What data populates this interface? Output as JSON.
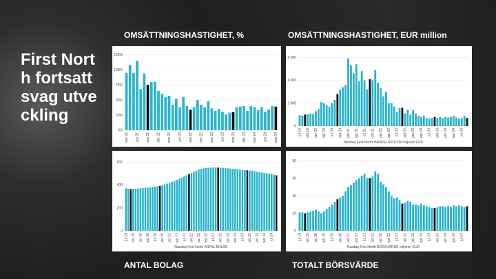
{
  "slide": {
    "title": "First North fortsatt svag utveckling"
  },
  "chart_data": [
    {
      "type": "bar",
      "title": "OMSÄTTNINGSHASTIGHET, %",
      "categories": [
        "mar 21",
        null,
        null,
        "jun 21",
        null,
        null,
        "sep 21",
        null,
        null,
        "dec 21",
        null,
        null,
        "mar 22",
        null,
        null,
        "jun 22",
        null,
        null,
        "sep 22",
        null,
        null,
        "dec 22",
        null,
        null,
        "mar 23",
        null,
        null,
        "jun 23",
        null,
        null,
        "sep 23",
        null,
        null,
        "dec 23",
        null,
        null,
        "mar 24",
        null,
        null,
        "jun 24",
        null,
        null,
        "sep 24"
      ],
      "values": [
        95,
        108,
        95,
        115,
        68,
        94,
        75,
        80,
        80,
        65,
        60,
        55,
        57,
        42,
        52,
        38,
        55,
        40,
        34,
        38,
        50,
        42,
        38,
        48,
        36,
        32,
        35,
        30,
        26,
        29,
        30,
        38,
        39,
        40,
        32,
        40,
        38,
        33,
        38,
        30,
        34,
        40,
        39
      ],
      "colors": [
        "#29b4cc",
        "#29b4cc",
        "#29b4cc",
        "#29b4cc",
        "#29b4cc",
        "#29b4cc",
        "#111111",
        "#29b4cc",
        "#29b4cc",
        "#29b4cc",
        "#29b4cc",
        "#29b4cc",
        "#29b4cc",
        "#29b4cc",
        "#29b4cc",
        "#29b4cc",
        "#29b4cc",
        "#29b4cc",
        "#111111",
        "#29b4cc",
        "#29b4cc",
        "#29b4cc",
        "#29b4cc",
        "#29b4cc",
        "#29b4cc",
        "#29b4cc",
        "#29b4cc",
        "#29b4cc",
        "#29b4cc",
        "#29b4cc",
        "#111111",
        "#29b4cc",
        "#29b4cc",
        "#29b4cc",
        "#29b4cc",
        "#29b4cc",
        "#29b4cc",
        "#29b4cc",
        "#29b4cc",
        "#29b4cc",
        "#29b4cc",
        "#29b4cc",
        "#111111"
      ],
      "ylim": [
        0,
        130
      ],
      "yticks": [
        {
          "value": 0,
          "label": "0%"
        },
        {
          "value": 25,
          "label": "25%"
        },
        {
          "value": 50,
          "label": "50%"
        },
        {
          "value": 75,
          "label": "75%"
        },
        {
          "value": 100,
          "label": "100%"
        },
        {
          "value": 125,
          "label": "125%"
        }
      ],
      "grid": true
    },
    {
      "type": "bar",
      "title": "OMSÄTTNINGSHASTIGHET, EUR million",
      "caption": "Nasdaq First North HANDELSVOLYM miljoner EUR",
      "categories": [
        "jul 19",
        null,
        null,
        "okt 19",
        null,
        null,
        "jan 20",
        null,
        null,
        "apr 20",
        null,
        null,
        "jul 20",
        null,
        null,
        "okt 20",
        null,
        null,
        "jan 21",
        null,
        null,
        "apr 21",
        null,
        null,
        "jul 21",
        null,
        null,
        "okt 21",
        null,
        null,
        "jan 22",
        null,
        null,
        "apr 22",
        null,
        null,
        "jul 22",
        null,
        null,
        "okt 22",
        null,
        null,
        "jan 23",
        null,
        null,
        "apr 23",
        null,
        null,
        "jul 23",
        null,
        null,
        "okt 23",
        null,
        null,
        "jan 24",
        null,
        null,
        "apr 24",
        null,
        null,
        "jul 24",
        null,
        null
      ],
      "values": [
        950,
        900,
        1000,
        1050,
        1100,
        1050,
        1300,
        1500,
        2100,
        2000,
        1800,
        1700,
        2000,
        2300,
        2800,
        3200,
        3400,
        3600,
        5900,
        5300,
        4600,
        5400,
        3900,
        4800,
        4000,
        3200,
        4100,
        4000,
        4900,
        3800,
        3300,
        2600,
        3000,
        2000,
        2000,
        1700,
        1200,
        1600,
        1600,
        1100,
        1400,
        1000,
        1400,
        1100,
        900,
        800,
        900,
        700,
        650,
        700,
        800,
        700,
        800,
        700,
        800,
        750,
        800,
        900,
        750,
        650,
        700,
        900,
        700
      ],
      "colors": [
        "#29b4cc",
        "#29b4cc",
        "#111111",
        "#29b4cc",
        "#29b4cc",
        "#29b4cc",
        "#29b4cc",
        "#29b4cc",
        "#29b4cc",
        "#29b4cc",
        "#29b4cc",
        "#29b4cc",
        "#29b4cc",
        "#29b4cc",
        "#111111",
        "#29b4cc",
        "#29b4cc",
        "#29b4cc",
        "#29b4cc",
        "#29b4cc",
        "#29b4cc",
        "#29b4cc",
        "#29b4cc",
        "#29b4cc",
        "#29b4cc",
        "#29b4cc",
        "#111111",
        "#29b4cc",
        "#29b4cc",
        "#29b4cc",
        "#29b4cc",
        "#29b4cc",
        "#29b4cc",
        "#29b4cc",
        "#29b4cc",
        "#29b4cc",
        "#29b4cc",
        "#29b4cc",
        "#111111",
        "#29b4cc",
        "#29b4cc",
        "#29b4cc",
        "#29b4cc",
        "#29b4cc",
        "#29b4cc",
        "#29b4cc",
        "#29b4cc",
        "#29b4cc",
        "#29b4cc",
        "#29b4cc",
        "#111111",
        "#29b4cc",
        "#29b4cc",
        "#29b4cc",
        "#29b4cc",
        "#29b4cc",
        "#29b4cc",
        "#29b4cc",
        "#29b4cc",
        "#29b4cc",
        "#29b4cc",
        "#29b4cc",
        "#111111"
      ],
      "ylim": [
        0,
        6500
      ],
      "yticks": [
        0,
        {
          "value": 2000,
          "label": "2 000"
        },
        {
          "value": 4000,
          "label": "4 000"
        },
        {
          "value": 6000,
          "label": "6 000"
        }
      ],
      "grid": true
    },
    {
      "type": "bar",
      "title": "ANTAL BOLAG",
      "caption": "Nasdaq First North ANTAL BOLAG",
      "categories": [
        "jul 19",
        null,
        null,
        "okt 19",
        null,
        null,
        "jan 20",
        null,
        null,
        "apr 20",
        null,
        null,
        "jul 20",
        null,
        null,
        "okt 20",
        null,
        null,
        "jan 21",
        null,
        null,
        "apr 21",
        null,
        null,
        "jul 21",
        null,
        null,
        "okt 21",
        null,
        null,
        "jan 22",
        null,
        null,
        "apr 22",
        null,
        null,
        "jul 22",
        null,
        null,
        "okt 22",
        null,
        null,
        "jan 23",
        null,
        null,
        "apr 23",
        null,
        null,
        "jul 23",
        null,
        null,
        "okt 23",
        null,
        null,
        "jan 24",
        null,
        null,
        "apr 24",
        null,
        null,
        "jul 24",
        null,
        null
      ],
      "values": [
        370,
        368,
        365,
        365,
        367,
        370,
        372,
        374,
        376,
        378,
        380,
        382,
        385,
        388,
        392,
        398,
        405,
        412,
        420,
        428,
        436,
        445,
        455,
        465,
        475,
        485,
        495,
        505,
        515,
        525,
        535,
        540,
        545,
        548,
        550,
        552,
        553,
        552,
        552,
        551,
        550,
        548,
        545,
        543,
        541,
        540,
        538,
        535,
        532,
        530,
        528,
        526,
        524,
        520,
        515,
        512,
        510,
        505,
        502,
        498,
        495,
        490,
        485
      ],
      "colors": [
        "#29b4cc",
        "#29b4cc",
        "#111111",
        "#29b4cc",
        "#29b4cc",
        "#29b4cc",
        "#29b4cc",
        "#29b4cc",
        "#29b4cc",
        "#29b4cc",
        "#29b4cc",
        "#29b4cc",
        "#29b4cc",
        "#29b4cc",
        "#111111",
        "#29b4cc",
        "#29b4cc",
        "#29b4cc",
        "#29b4cc",
        "#29b4cc",
        "#29b4cc",
        "#29b4cc",
        "#29b4cc",
        "#29b4cc",
        "#29b4cc",
        "#29b4cc",
        "#111111",
        "#29b4cc",
        "#29b4cc",
        "#29b4cc",
        "#29b4cc",
        "#29b4cc",
        "#29b4cc",
        "#29b4cc",
        "#29b4cc",
        "#29b4cc",
        "#29b4cc",
        "#29b4cc",
        "#111111",
        "#29b4cc",
        "#29b4cc",
        "#29b4cc",
        "#29b4cc",
        "#29b4cc",
        "#29b4cc",
        "#29b4cc",
        "#29b4cc",
        "#29b4cc",
        "#29b4cc",
        "#29b4cc",
        "#111111",
        "#29b4cc",
        "#29b4cc",
        "#29b4cc",
        "#29b4cc",
        "#29b4cc",
        "#29b4cc",
        "#29b4cc",
        "#29b4cc",
        "#29b4cc",
        "#29b4cc",
        "#29b4cc",
        "#111111"
      ],
      "ylim": [
        0,
        650
      ],
      "yticks": [
        0,
        200,
        400,
        600
      ],
      "grid": true
    },
    {
      "type": "bar",
      "title": "TOTALT BÖRSVÄRDE",
      "caption": "Nasdaq First North BÖRSVÄRDE miljoner EUR",
      "categories": [
        "jul 19",
        null,
        null,
        "okt 19",
        null,
        null,
        "jan 20",
        null,
        null,
        "apr 20",
        null,
        null,
        "jul 20",
        null,
        null,
        "okt 20",
        null,
        null,
        "jan 21",
        null,
        null,
        "apr 21",
        null,
        null,
        "jul 21",
        null,
        null,
        "okt 21",
        null,
        null,
        "jan 22",
        null,
        null,
        "apr 22",
        null,
        null,
        "jul 22",
        null,
        null,
        "okt 22",
        null,
        null,
        "jan 23",
        null,
        null,
        "apr 23",
        null,
        null,
        "jul 23",
        null,
        null,
        "okt 23",
        null,
        null,
        "jan 24",
        null,
        null,
        "apr 24",
        null,
        null,
        "jul 24",
        null,
        null
      ],
      "values": [
        21,
        21,
        20,
        21,
        22,
        23,
        24,
        22,
        20,
        22,
        25,
        27,
        30,
        33,
        36,
        38,
        40,
        45,
        50,
        52,
        55,
        58,
        60,
        63,
        65,
        60,
        60,
        62,
        68,
        65,
        56,
        53,
        50,
        45,
        40,
        37,
        38,
        35,
        31,
        32,
        34,
        33,
        30,
        30,
        29,
        31,
        29,
        28,
        27,
        26,
        26,
        27,
        28,
        28,
        27,
        28,
        27,
        29,
        28,
        29,
        28,
        27,
        28
      ],
      "colors": [
        "#29b4cc",
        "#29b4cc",
        "#111111",
        "#29b4cc",
        "#29b4cc",
        "#29b4cc",
        "#29b4cc",
        "#29b4cc",
        "#29b4cc",
        "#29b4cc",
        "#29b4cc",
        "#29b4cc",
        "#29b4cc",
        "#29b4cc",
        "#111111",
        "#29b4cc",
        "#29b4cc",
        "#29b4cc",
        "#29b4cc",
        "#29b4cc",
        "#29b4cc",
        "#29b4cc",
        "#29b4cc",
        "#29b4cc",
        "#29b4cc",
        "#29b4cc",
        "#111111",
        "#29b4cc",
        "#29b4cc",
        "#29b4cc",
        "#29b4cc",
        "#29b4cc",
        "#29b4cc",
        "#29b4cc",
        "#29b4cc",
        "#29b4cc",
        "#29b4cc",
        "#29b4cc",
        "#111111",
        "#29b4cc",
        "#29b4cc",
        "#29b4cc",
        "#29b4cc",
        "#29b4cc",
        "#29b4cc",
        "#29b4cc",
        "#29b4cc",
        "#29b4cc",
        "#29b4cc",
        "#29b4cc",
        "#111111",
        "#29b4cc",
        "#29b4cc",
        "#29b4cc",
        "#29b4cc",
        "#29b4cc",
        "#29b4cc",
        "#29b4cc",
        "#29b4cc",
        "#29b4cc",
        "#29b4cc",
        "#29b4cc",
        "#111111"
      ],
      "ylim": [
        0,
        85
      ],
      "yticks": [
        0,
        20,
        40,
        60,
        80
      ],
      "grid": true
    }
  ]
}
